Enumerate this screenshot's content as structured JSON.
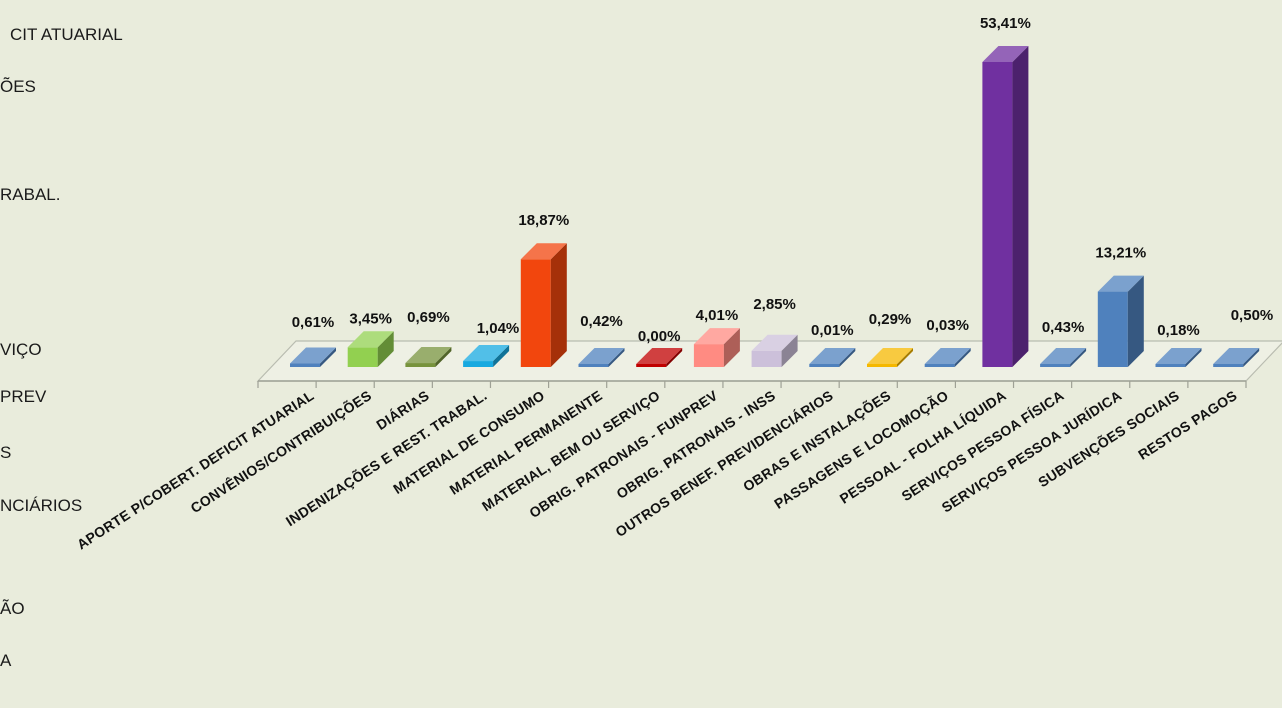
{
  "chart_data": {
    "type": "bar",
    "categories": [
      "APORTE P/COBERT. DEFICIT ATUARIAL",
      "CONVÊNIOS/CONTRIBUIÇÕES",
      "DIÁRIAS",
      "INDENIZAÇÕES E REST. TRABAL.",
      "MATERIAL DE CONSUMO",
      "MATERIAL PERMANENTE",
      "MATERIAL, BEM OU SERVIÇO",
      "OBRIG. PATRONAIS - FUNPREV",
      "OBRIG. PATRONAIS - INSS",
      "OUTROS BENEF. PREVIDENCIÁRIOS",
      "OBRAS E INSTALAÇÕES",
      "PASSAGENS E LOCOMOÇÃO",
      "PESSOAL - FOLHA LÍQUIDA",
      "SERVIÇOS PESSOA FÍSICA",
      "SERVIÇOS PESSOA JURÍDICA",
      "SUBVENÇÕES SOCIAIS",
      "RESTOS PAGOS"
    ],
    "values": [
      0.61,
      3.45,
      0.69,
      1.04,
      18.87,
      0.42,
      0.0,
      4.01,
      2.85,
      0.01,
      0.29,
      0.03,
      53.41,
      0.43,
      13.21,
      0.18,
      0.5
    ],
    "value_labels": [
      "0,61%",
      "3,45%",
      "0,69%",
      "1,04%",
      "18,87%",
      "0,42%",
      "0,00%",
      "4,01%",
      "2,85%",
      "0,01%",
      "0,29%",
      "0,03%",
      "53,41%",
      "0,43%",
      "13,21%",
      "0,18%",
      "0,50%"
    ],
    "colors": [
      "#4f81bd",
      "#92d050",
      "#77933c",
      "#17a9e0",
      "#f2460d",
      "#4f81bd",
      "#c00000",
      "#ff8b82",
      "#ccc0da",
      "#4f81bd",
      "#f5b800",
      "#4f81bd",
      "#7030a0",
      "#4f81bd",
      "#4f81bd",
      "#4f81bd",
      "#4f81bd"
    ],
    "ylim": [
      0,
      60
    ],
    "grid": false,
    "legend": {
      "position": "left (cropped)",
      "entries": [
        "CIT ATUARIAL",
        "ÕES",
        "RABAL.",
        "VIÇO",
        "PREV",
        "S",
        "NCIÁRIOS",
        "ÃO",
        "A"
      ]
    }
  }
}
